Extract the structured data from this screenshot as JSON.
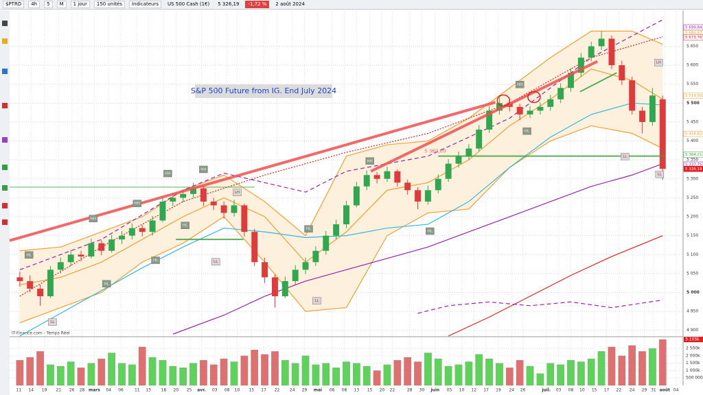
{
  "toolbar": {
    "symbol": "$PTRD",
    "intervals": [
      "4h",
      "5",
      "M"
    ],
    "period": "1 jour",
    "units": "150 unités",
    "indicators": "Indicateurs",
    "instrument": "US 500 Cash (1€)",
    "last": "5 326,19",
    "change": "-1,72 %",
    "date": "2 août 2024"
  },
  "chart_data": {
    "type": "candlestick",
    "title": "S&P 500 Future from IG. End July 2024",
    "source": "IT-Finance.com - Temps Réel",
    "up_color": "#2fa84f",
    "down_color": "#e03a3a",
    "xlim": [
      -1,
      65
    ],
    "ylim": [
      4885,
      5745
    ],
    "grid": true,
    "yticks": [
      {
        "value": 4900,
        "label": "4 900"
      },
      {
        "value": 4950,
        "label": "4 950"
      },
      {
        "value": 5000,
        "label": "5 000"
      },
      {
        "value": 5050,
        "label": "5 050"
      },
      {
        "value": 5100,
        "label": "5 100"
      },
      {
        "value": 5150,
        "label": "5 150"
      },
      {
        "value": 5200,
        "label": "5 200"
      },
      {
        "value": 5250,
        "label": "5 250"
      },
      {
        "value": 5300,
        "label": "5 300"
      },
      {
        "value": 5350,
        "label": "5 350"
      },
      {
        "value": 5400,
        "label": "5 400"
      },
      {
        "value": 5450,
        "label": "5 450"
      },
      {
        "value": 5500,
        "label": "5 500"
      },
      {
        "value": 5550,
        "label": "5 550"
      },
      {
        "value": 5600,
        "label": "5 600"
      },
      {
        "value": 5650,
        "label": "5 650"
      }
    ],
    "xticks": [
      {
        "value": -0.1,
        "label": "11"
      },
      {
        "value": 1.1,
        "label": "14"
      },
      {
        "value": 2.4,
        "label": "19"
      },
      {
        "value": 3.8,
        "label": "21"
      },
      {
        "value": 5.1,
        "label": "26"
      },
      {
        "value": 6.1,
        "label": "28"
      },
      {
        "value": 7.3,
        "label": "mars"
      },
      {
        "value": 8.7,
        "label": "04"
      },
      {
        "value": 9.9,
        "label": "06"
      },
      {
        "value": 11.5,
        "label": "11"
      },
      {
        "value": 12.6,
        "label": "13"
      },
      {
        "value": 14.1,
        "label": "18"
      },
      {
        "value": 15.3,
        "label": "20"
      },
      {
        "value": 16.6,
        "label": "25"
      },
      {
        "value": 17.8,
        "label": "avr."
      },
      {
        "value": 19.1,
        "label": "03"
      },
      {
        "value": 20.3,
        "label": "08"
      },
      {
        "value": 21.3,
        "label": "10"
      },
      {
        "value": 22.7,
        "label": "15"
      },
      {
        "value": 23.9,
        "label": "17"
      },
      {
        "value": 25.2,
        "label": "22"
      },
      {
        "value": 26.7,
        "label": "24"
      },
      {
        "value": 27.9,
        "label": "29"
      },
      {
        "value": 29.2,
        "label": "mai"
      },
      {
        "value": 30.6,
        "label": "06"
      },
      {
        "value": 31.8,
        "label": "08"
      },
      {
        "value": 33,
        "label": "13"
      },
      {
        "value": 34.3,
        "label": "15"
      },
      {
        "value": 35.5,
        "label": "20"
      },
      {
        "value": 36.5,
        "label": "22"
      },
      {
        "value": 38.2,
        "label": "28"
      },
      {
        "value": 39.4,
        "label": "30"
      },
      {
        "value": 40.7,
        "label": "juin"
      },
      {
        "value": 42.1,
        "label": "05"
      },
      {
        "value": 43.3,
        "label": "10"
      },
      {
        "value": 44.5,
        "label": "12"
      },
      {
        "value": 45.7,
        "label": "17"
      },
      {
        "value": 46.9,
        "label": "19"
      },
      {
        "value": 48.2,
        "label": "24"
      },
      {
        "value": 49.3,
        "label": "26"
      },
      {
        "value": 51.6,
        "label": "juil."
      },
      {
        "value": 52.8,
        "label": "03"
      },
      {
        "value": 54,
        "label": "08"
      },
      {
        "value": 55.1,
        "label": "10"
      },
      {
        "value": 56.3,
        "label": "15"
      },
      {
        "value": 57.5,
        "label": "17"
      },
      {
        "value": 58.7,
        "label": "22"
      },
      {
        "value": 60,
        "label": "24"
      },
      {
        "value": 61.2,
        "label": "29"
      },
      {
        "value": 62.1,
        "label": "31"
      },
      {
        "value": 63.2,
        "label": "août"
      },
      {
        "value": 64.3,
        "label": "04"
      }
    ],
    "candles": [
      [
        5040,
        5055,
        5015,
        5030
      ],
      [
        5030,
        5045,
        5000,
        5010
      ],
      [
        5010,
        5020,
        4965,
        4990
      ],
      [
        4990,
        5070,
        4985,
        5060
      ],
      [
        5060,
        5092,
        5050,
        5080
      ],
      [
        5080,
        5112,
        5070,
        5100
      ],
      [
        5100,
        5110,
        5082,
        5095
      ],
      [
        5095,
        5142,
        5090,
        5130
      ],
      [
        5130,
        5138,
        5098,
        5110
      ],
      [
        5110,
        5152,
        5105,
        5140
      ],
      [
        5140,
        5162,
        5128,
        5150
      ],
      [
        5150,
        5182,
        5140,
        5170
      ],
      [
        5170,
        5178,
        5148,
        5160
      ],
      [
        5160,
        5202,
        5150,
        5190
      ],
      [
        5190,
        5252,
        5185,
        5240
      ],
      [
        5240,
        5262,
        5228,
        5250
      ],
      [
        5250,
        5272,
        5238,
        5260
      ],
      [
        5260,
        5290,
        5250,
        5275
      ],
      [
        5275,
        5282,
        5228,
        5240
      ],
      [
        5240,
        5250,
        5218,
        5230
      ],
      [
        5230,
        5240,
        5195,
        5210
      ],
      [
        5210,
        5245,
        5200,
        5230
      ],
      [
        5230,
        5235,
        5148,
        5160
      ],
      [
        5160,
        5168,
        5070,
        5080
      ],
      [
        5080,
        5092,
        5025,
        5040
      ],
      [
        5040,
        5048,
        4960,
        4990
      ],
      [
        4990,
        5042,
        4985,
        5030
      ],
      [
        5030,
        5072,
        5020,
        5060
      ],
      [
        5060,
        5092,
        5048,
        5080
      ],
      [
        5080,
        5122,
        5070,
        5110
      ],
      [
        5110,
        5162,
        5100,
        5150
      ],
      [
        5150,
        5192,
        5140,
        5180
      ],
      [
        5180,
        5242,
        5170,
        5230
      ],
      [
        5230,
        5292,
        5225,
        5280
      ],
      [
        5280,
        5322,
        5270,
        5310
      ],
      [
        5310,
        5318,
        5288,
        5300
      ],
      [
        5300,
        5332,
        5292,
        5320
      ],
      [
        5320,
        5325,
        5280,
        5290
      ],
      [
        5290,
        5298,
        5258,
        5270
      ],
      [
        5270,
        5278,
        5220,
        5240
      ],
      [
        5240,
        5282,
        5232,
        5270
      ],
      [
        5270,
        5312,
        5262,
        5300
      ],
      [
        5300,
        5352,
        5292,
        5340
      ],
      [
        5340,
        5372,
        5330,
        5360
      ],
      [
        5360,
        5392,
        5350,
        5380
      ],
      [
        5380,
        5442,
        5372,
        5430
      ],
      [
        5430,
        5492,
        5422,
        5480
      ],
      [
        5480,
        5515,
        5470,
        5500
      ],
      [
        5500,
        5508,
        5478,
        5490
      ],
      [
        5490,
        5498,
        5455,
        5470
      ],
      [
        5470,
        5492,
        5460,
        5480
      ],
      [
        5480,
        5502,
        5470,
        5490
      ],
      [
        5490,
        5522,
        5480,
        5510
      ],
      [
        5510,
        5552,
        5500,
        5540
      ],
      [
        5540,
        5592,
        5530,
        5580
      ],
      [
        5580,
        5632,
        5570,
        5620
      ],
      [
        5620,
        5662,
        5610,
        5650
      ],
      [
        5650,
        5690,
        5640,
        5670
      ],
      [
        5670,
        5678,
        5590,
        5600
      ],
      [
        5600,
        5612,
        5548,
        5560
      ],
      [
        5560,
        5570,
        5470,
        5480
      ],
      [
        5480,
        5490,
        5420,
        5450
      ],
      [
        5450,
        5540,
        5440,
        5520
      ],
      [
        5510,
        5520,
        5298,
        5326.19
      ]
    ],
    "band_fill": "#fdf0dc",
    "overlays": [
      {
        "color": "#f0a030",
        "x": [
          0,
          4,
          8,
          12,
          16,
          20,
          24,
          28,
          32,
          36,
          40,
          44,
          48,
          52,
          56,
          60,
          63
        ],
        "values": [
          5110,
          5120,
          5160,
          5200,
          5270,
          5310,
          5240,
          5150,
          5360,
          5390,
          5400,
          5460,
          5540,
          5620,
          5690,
          5690,
          5655
        ],
        "band": "upper"
      },
      {
        "color": "#f0a030",
        "x": [
          0,
          4,
          8,
          12,
          16,
          20,
          24,
          28,
          32,
          36,
          40,
          44,
          48,
          52,
          56,
          60,
          63
        ],
        "values": [
          4920,
          4960,
          5000,
          5080,
          5130,
          5200,
          5080,
          4950,
          4960,
          5150,
          5210,
          5220,
          5330,
          5400,
          5440,
          5420,
          5380
        ],
        "band": "lower"
      },
      {
        "color": "#f0a030",
        "x": [
          0,
          4,
          8,
          12,
          16,
          20,
          24,
          28,
          32,
          36,
          40,
          44,
          48,
          52,
          56,
          60,
          63
        ],
        "values": [
          5020,
          5040,
          5080,
          5140,
          5200,
          5250,
          5200,
          5080,
          5160,
          5270,
          5290,
          5350,
          5440,
          5510,
          5590,
          5560,
          5510
        ]
      },
      {
        "color": "#30b8e0",
        "x": [
          0,
          4,
          8,
          12,
          16,
          20,
          24,
          28,
          32,
          36,
          40,
          44,
          48,
          52,
          56,
          60,
          63
        ],
        "values": [
          4885,
          4945,
          5005,
          5065,
          5120,
          5170,
          5160,
          5145,
          5150,
          5170,
          5180,
          5240,
          5330,
          5410,
          5470,
          5500,
          5495
        ]
      },
      {
        "color": "#9a20b0",
        "x": [
          15,
          20,
          24,
          28,
          32,
          36,
          40,
          44,
          48,
          52,
          56,
          60,
          63
        ],
        "values": [
          4890,
          4940,
          4990,
          5030,
          5060,
          5090,
          5120,
          5160,
          5200,
          5240,
          5280,
          5310,
          5340
        ]
      },
      {
        "color": "#e02020",
        "x": [
          42,
          46,
          50,
          54,
          58,
          63
        ],
        "values": [
          4885,
          4935,
          4990,
          5045,
          5095,
          5150
        ]
      },
      {
        "color": "#e02020",
        "dash": "2,2",
        "x": [
          0,
          8,
          16,
          24,
          32,
          40,
          48,
          56,
          63
        ],
        "values": [
          4990,
          5120,
          5240,
          5310,
          5370,
          5420,
          5500,
          5620,
          5675
        ]
      },
      {
        "color": "#9a20b0",
        "dash": "6,4",
        "x": [
          0,
          8,
          16,
          20,
          24,
          28,
          32,
          40,
          48,
          56,
          63
        ],
        "values": [
          5060,
          5140,
          5270,
          5315,
          5290,
          5265,
          5320,
          5360,
          5460,
          5620,
          5720
        ]
      },
      {
        "color": "#9a20b0",
        "dash": "6,4",
        "x": [
          39,
          42,
          46,
          50,
          54,
          58,
          63
        ],
        "values": [
          4945,
          4965,
          4975,
          4965,
          4975,
          4960,
          4980
        ]
      }
    ],
    "levels": [
      {
        "color": "#40a040",
        "width": 1,
        "x": [
          -1,
          23
        ],
        "values": [
          5278,
          5278
        ]
      },
      {
        "color": "#40a040",
        "width": 2,
        "x": [
          15.3,
          21.9
        ],
        "values": [
          5140,
          5140
        ]
      },
      {
        "color": "#40a040",
        "width": 2,
        "x": [
          41,
          63.2
        ],
        "values": [
          5360,
          5360
        ],
        "label": "5 360,00"
      },
      {
        "color": "#40a040",
        "width": 2,
        "x": [
          54.9,
          58.5
        ],
        "values": [
          5530,
          5580
        ]
      },
      {
        "color": "#f05050",
        "width": 4,
        "x": [
          -1,
          46.6
        ],
        "values": [
          5137,
          5502
        ]
      },
      {
        "color": "#f05050",
        "width": 4,
        "x": [
          34.4,
          56.6
        ],
        "values": [
          5320,
          5610
        ]
      }
    ],
    "circles": [
      {
        "x": 47.4,
        "y": 5507
      },
      {
        "x": 50.4,
        "y": 5516
      }
    ],
    "annotations": [
      {
        "text": "HL",
        "x": 0.9,
        "y": 5099
      },
      {
        "text": "HL",
        "x": 8.5,
        "y": 5023
      },
      {
        "text": "LL",
        "x": 3.2,
        "y": 4922
      },
      {
        "text": "HH",
        "x": 7.2,
        "y": 5195
      },
      {
        "text": "HH",
        "x": 11.5,
        "y": 5235
      },
      {
        "text": "HH",
        "x": 14.5,
        "y": 5314
      },
      {
        "text": "HH",
        "x": 18,
        "y": 5325
      },
      {
        "text": "HL",
        "x": 13.3,
        "y": 5085
      },
      {
        "text": "HL",
        "x": 16.2,
        "y": 5177
      },
      {
        "text": "LH",
        "x": 21.3,
        "y": 5264
      },
      {
        "text": "LL",
        "x": 19.2,
        "y": 5081
      },
      {
        "text": "LL",
        "x": 29.1,
        "y": 4978
      },
      {
        "text": "HL",
        "x": 28.3,
        "y": 5168
      },
      {
        "text": "HH",
        "x": 34.3,
        "y": 5347
      },
      {
        "text": "HL",
        "x": 40.2,
        "y": 5162
      },
      {
        "text": "HH",
        "x": 49,
        "y": 5549
      },
      {
        "text": "HL",
        "x": 49.7,
        "y": 5426
      },
      {
        "text": "LH",
        "x": 62.6,
        "y": 5607
      },
      {
        "text": "LL",
        "x": 59.3,
        "y": 5359
      },
      {
        "text": "LL",
        "x": 62.7,
        "y": 5312
      }
    ],
    "price_badges": [
      {
        "value": 5699.84,
        "label": "5 699,84",
        "color": "#9a20b0"
      },
      {
        "value": 5684.82,
        "label": "5 684,82",
        "color": "#f0a030"
      },
      {
        "value": 5673.76,
        "label": "5 673,76",
        "color": "#e02020"
      },
      {
        "value": 5519.5,
        "label": "5 519,50",
        "color": "#f0a030"
      },
      {
        "value": 5418.82,
        "label": "5 418,82",
        "color": "#f0a030"
      },
      {
        "value": 5364.21,
        "label": "5 364,21",
        "color": "#40a040"
      },
      {
        "value": 5337.75,
        "label": "5 337,75",
        "color": "#9a20b0"
      },
      {
        "value": 5326.19,
        "label": "5 326,19",
        "color": "#e02020",
        "filled": true
      }
    ],
    "volume": {
      "ylim": [
        0,
        3200000
      ],
      "up_color": "#5dd35a",
      "down_color": "#e07070",
      "yticks": [
        {
          "value": 500000,
          "label": "500 000"
        },
        {
          "value": 1000000,
          "label": "1 000k"
        },
        {
          "value": 1500000,
          "label": "1 500k"
        },
        {
          "value": 2000000,
          "label": "2 000k"
        },
        {
          "value": 2500000,
          "label": "2 500k"
        }
      ],
      "values": [
        1700000,
        1900000,
        2300000,
        1400000,
        1300000,
        1600000,
        1200000,
        1500000,
        1800000,
        2200000,
        1500000,
        1400000,
        2600000,
        1900000,
        1700000,
        1300000,
        1200000,
        1500000,
        1700000,
        1400000,
        1800000,
        1600000,
        2000000,
        2400000,
        2100000,
        2300000,
        1700000,
        1500000,
        2000000,
        1400000,
        1500000,
        1200000,
        1600000,
        1500000,
        1300000,
        1000000,
        1400000,
        1700000,
        1900000,
        1600000,
        2200000,
        1800000,
        1300000,
        1400000,
        1600000,
        2100000,
        1800000,
        1500000,
        1200000,
        1700000,
        1300000,
        800000,
        1500000,
        1400000,
        1700000,
        1600000,
        1800000,
        2300000,
        2600000,
        2000000,
        2700000,
        2300000,
        2500000,
        3105000
      ],
      "value_labels": {
        "63": "3.105k"
      }
    }
  }
}
